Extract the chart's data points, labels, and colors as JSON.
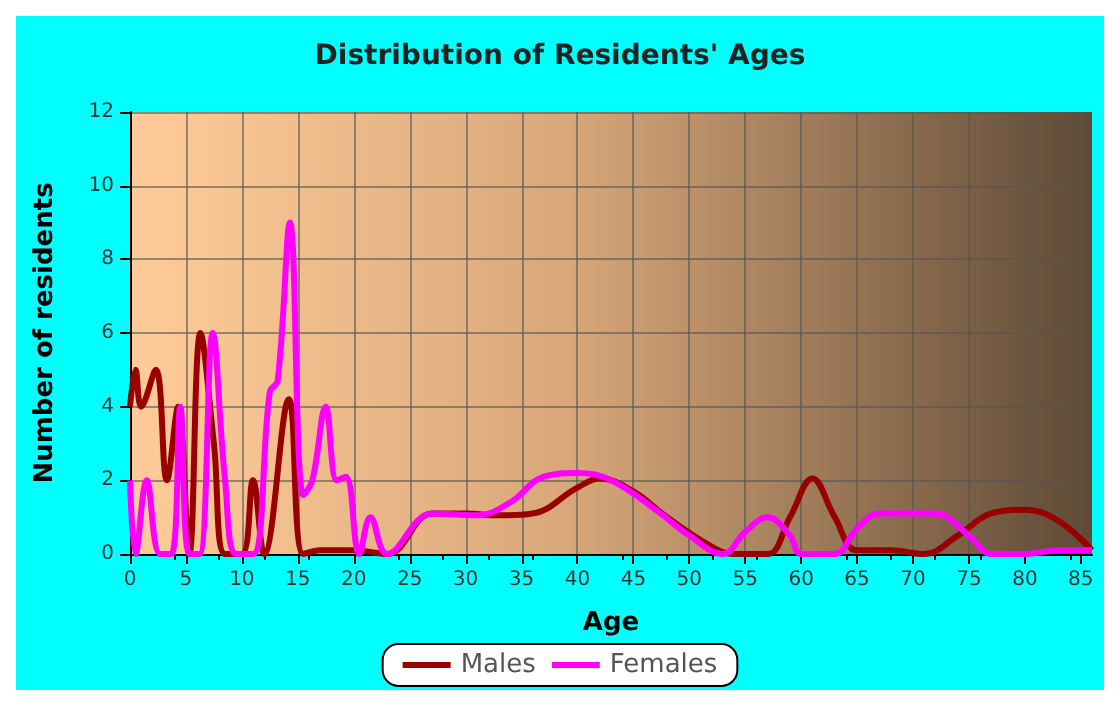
{
  "chart_data": {
    "type": "line",
    "title": "Distribution of Residents' Ages",
    "xlabel": "Age",
    "ylabel": "Number of residents",
    "xlim": [
      0,
      86
    ],
    "xticks": [
      0,
      5,
      10,
      15,
      20,
      25,
      30,
      35,
      40,
      45,
      50,
      55,
      60,
      65,
      70,
      75,
      80,
      85
    ],
    "ylim": [
      0,
      12
    ],
    "yticks": [
      0,
      2,
      4,
      6,
      8,
      10,
      12
    ],
    "grid": true,
    "legend": "bottom",
    "marker": "none",
    "line_style": "solid",
    "series": [
      {
        "name": "Males",
        "color": "#990000",
        "x": [
          0,
          0.5,
          1,
          2.3,
          3.3,
          4.3,
          5.3,
          6.3,
          7.5,
          8.5,
          10,
          11,
          12,
          14.2,
          15.5,
          17,
          20,
          23,
          27,
          30,
          33,
          36,
          40,
          42,
          45,
          48,
          52,
          54,
          57,
          59,
          61,
          63,
          65,
          68,
          71,
          74,
          77,
          80,
          83,
          86
        ],
        "values": [
          4,
          5,
          4,
          5,
          2,
          4,
          0,
          6,
          3,
          0,
          0,
          2,
          0,
          4.2,
          0,
          0.1,
          0.1,
          0,
          1.1,
          1.1,
          1.05,
          1.1,
          1.8,
          2.05,
          1.7,
          1,
          0.2,
          0,
          0,
          1,
          2.05,
          1,
          0.1,
          0.1,
          0,
          0.5,
          1.1,
          1.2,
          0.9,
          0.1
        ]
      },
      {
        "name": "Females",
        "color": "#ff00ff",
        "x": [
          0,
          0.5,
          1.5,
          2.7,
          3.7,
          4.5,
          5.3,
          6.2,
          7.4,
          8.5,
          9.5,
          11,
          12.5,
          13.2,
          14.3,
          15.5,
          16.3,
          17.5,
          18.5,
          19.3,
          20.5,
          21.5,
          23,
          27,
          31,
          34,
          37,
          40,
          43,
          47,
          50,
          53,
          55,
          57,
          59,
          60,
          63,
          65,
          67,
          70,
          72,
          75,
          77,
          80,
          83,
          86
        ],
        "values": [
          2,
          0,
          2,
          0,
          0,
          4,
          0,
          0,
          6,
          2,
          0,
          0,
          4.4,
          4.7,
          9,
          1.6,
          2,
          4,
          2,
          2.1,
          0,
          1,
          0,
          1.1,
          1.05,
          1.4,
          2.1,
          2.2,
          2,
          1.2,
          0.5,
          0,
          0.6,
          1,
          0.5,
          0,
          0,
          0.7,
          1.1,
          1.1,
          1.1,
          0.5,
          0,
          0,
          0.1,
          0.1
        ]
      }
    ]
  }
}
